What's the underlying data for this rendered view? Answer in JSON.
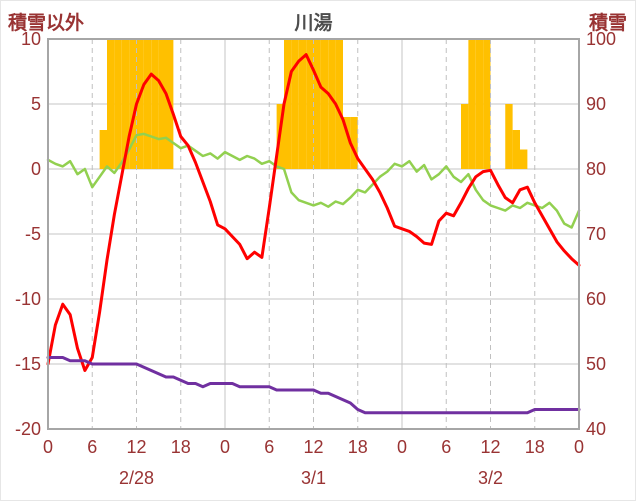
{
  "chart_data": {
    "type": "line",
    "title": "川湯",
    "left_axis_label": "積雪以外",
    "right_axis_label": "積雪",
    "left_axis": {
      "min": -20,
      "max": 10,
      "ticks": [
        10,
        5,
        0,
        -5,
        -10,
        -15,
        -20
      ]
    },
    "right_axis": {
      "min": 40,
      "max": 100,
      "ticks": [
        100,
        90,
        80,
        70,
        60,
        50,
        40
      ]
    },
    "x_axis": {
      "hours_total": 72,
      "tick_hours": [
        0,
        6,
        12,
        18,
        24,
        30,
        36,
        42,
        48,
        54,
        60,
        66,
        72
      ],
      "tick_labels": [
        "0",
        "6",
        "12",
        "18",
        "0",
        "6",
        "12",
        "18",
        "0",
        "6",
        "12",
        "18",
        "0"
      ],
      "grid_dashed_hours": [
        6,
        12,
        18,
        30,
        36,
        42,
        54,
        60,
        66
      ],
      "grid_solid_hours": [
        24,
        48
      ],
      "dates": [
        {
          "label": "2/28",
          "center_hour": 12
        },
        {
          "label": "3/1",
          "center_hour": 36
        },
        {
          "label": "3/2",
          "center_hour": 60
        }
      ]
    },
    "colors": {
      "axis_text": "#993333",
      "title_text": "#4d4d4d",
      "grid": "#c6c6c6",
      "grid_dashed": "#c0c0c0",
      "border": "#a6a6a6",
      "background": "#ffffff",
      "bar": "#FFC000",
      "red_line": "#FF0000",
      "green_line": "#92D050",
      "purple_line": "#7030A0"
    },
    "legend": "none",
    "series": [
      {
        "id": "orange-bar-series",
        "type": "bar",
        "axis": "left",
        "color": "#FFC000",
        "values_hourly": [
          0,
          0,
          0,
          0,
          0,
          0,
          0,
          3,
          10,
          10,
          10,
          10,
          10,
          10,
          10,
          10,
          10,
          0,
          0,
          0,
          0,
          0,
          0,
          0,
          0,
          0,
          0,
          0,
          0,
          0,
          0,
          5,
          10,
          10,
          10,
          10,
          10,
          10,
          10,
          10,
          4,
          4,
          0,
          0,
          0,
          0,
          0,
          0,
          0,
          0,
          0,
          0,
          0,
          0,
          0,
          0,
          5,
          10,
          10,
          10,
          0,
          0,
          5,
          3,
          1.5,
          0,
          0,
          0,
          0,
          0,
          0,
          0
        ]
      },
      {
        "id": "green-line-series",
        "type": "line",
        "axis": "left",
        "color": "#92D050",
        "width": 2.5,
        "values": [
          0.7,
          0.4,
          0.2,
          0.6,
          -0.4,
          0.0,
          -1.4,
          -0.6,
          0.2,
          -0.3,
          0.5,
          1.5,
          2.6,
          2.7,
          2.5,
          2.3,
          2.4,
          2.0,
          1.6,
          1.8,
          1.4,
          1.0,
          1.2,
          0.8,
          1.3,
          1.0,
          0.7,
          1.0,
          0.8,
          0.4,
          0.6,
          0.2,
          0.0,
          -1.8,
          -2.4,
          -2.6,
          -2.8,
          -2.6,
          -2.9,
          -2.5,
          -2.7,
          -2.2,
          -1.6,
          -1.8,
          -1.2,
          -0.6,
          -0.2,
          0.4,
          0.2,
          0.6,
          -0.2,
          0.3,
          -0.8,
          -0.4,
          0.2,
          -0.6,
          -1.0,
          -0.4,
          -1.6,
          -2.4,
          -2.8,
          -3.0,
          -3.2,
          -2.8,
          -3.0,
          -2.6,
          -2.8,
          -3.0,
          -2.6,
          -3.2,
          -4.2,
          -4.5,
          -3.2
        ]
      },
      {
        "id": "red-line-series",
        "type": "line",
        "axis": "left",
        "color": "#FF0000",
        "width": 3,
        "values": [
          -15.0,
          -12.0,
          -10.4,
          -11.2,
          -13.8,
          -15.5,
          -14.5,
          -11.0,
          -7.0,
          -3.5,
          -0.5,
          2.5,
          5.0,
          6.5,
          7.3,
          6.8,
          5.8,
          4.2,
          2.5,
          1.8,
          0.5,
          -1.0,
          -2.5,
          -4.3,
          -4.6,
          -5.2,
          -5.8,
          -6.9,
          -6.4,
          -6.8,
          -3.0,
          1.0,
          5.0,
          7.5,
          8.3,
          8.8,
          7.6,
          6.3,
          5.8,
          5.0,
          3.8,
          2.0,
          0.8,
          0.0,
          -0.8,
          -1.8,
          -3.0,
          -4.4,
          -4.6,
          -4.8,
          -5.2,
          -5.7,
          -5.8,
          -4.0,
          -3.4,
          -3.6,
          -2.6,
          -1.5,
          -0.6,
          -0.2,
          -0.1,
          -1.2,
          -2.2,
          -2.6,
          -1.6,
          -1.4,
          -2.6,
          -3.6,
          -4.6,
          -5.6,
          -6.3,
          -6.9,
          -7.4
        ]
      },
      {
        "id": "purple-line-series",
        "type": "line",
        "axis": "right",
        "color": "#7030A0",
        "width": 3,
        "values": [
          51,
          51,
          51,
          50.5,
          50.5,
          50.5,
          50,
          50,
          50,
          50,
          50,
          50,
          50,
          49.5,
          49,
          48.5,
          48,
          48,
          47.5,
          47,
          47,
          46.5,
          47,
          47,
          47,
          47,
          46.5,
          46.5,
          46.5,
          46.5,
          46.5,
          46,
          46,
          46,
          46,
          46,
          46,
          45.5,
          45.5,
          45,
          44.5,
          44,
          43,
          42.5,
          42.5,
          42.5,
          42.5,
          42.5,
          42.5,
          42.5,
          42.5,
          42.5,
          42.5,
          42.5,
          42.5,
          42.5,
          42.5,
          42.5,
          42.5,
          42.5,
          42.5,
          42.5,
          42.5,
          42.5,
          42.5,
          42.5,
          43,
          43,
          43,
          43,
          43,
          43,
          43
        ]
      }
    ]
  }
}
